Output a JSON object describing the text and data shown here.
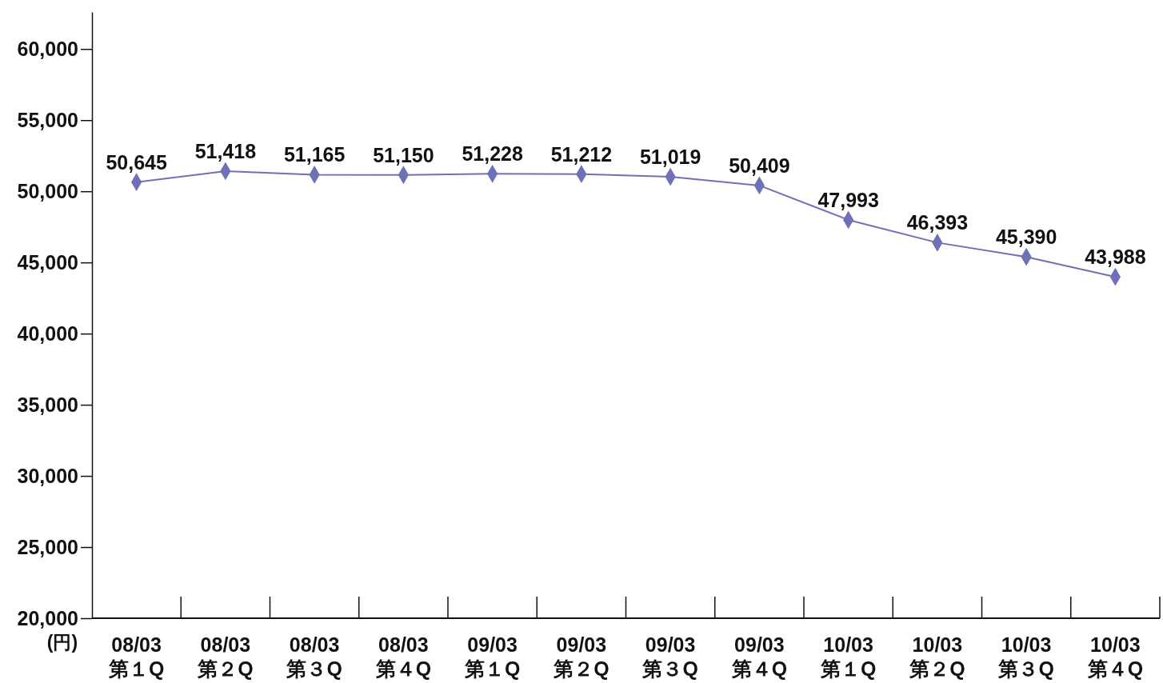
{
  "chart_data": {
    "type": "line",
    "ylabel": "(円)",
    "categories": [
      "08/03\n第１Q",
      "08/03\n第２Q",
      "08/03\n第３Q",
      "08/03\n第４Q",
      "09/03\n第１Q",
      "09/03\n第２Q",
      "09/03\n第３Q",
      "09/03\n第４Q",
      "10/03\n第１Q",
      "10/03\n第２Q",
      "10/03\n第３Q",
      "10/03\n第４Q"
    ],
    "series": [
      {
        "color": "#6e70b8",
        "values": [
          50645,
          51418,
          51165,
          51150,
          51228,
          51212,
          51019,
          50409,
          47993,
          46393,
          45390,
          43988
        ],
        "value_labels": [
          "50,645",
          "51,418",
          "51,165",
          "51,150",
          "51,228",
          "51,212",
          "51,019",
          "50,409",
          "47,993",
          "46,393",
          "45,390",
          "43,988"
        ]
      }
    ],
    "ylim": [
      20000,
      62600
    ],
    "yticks": [
      {
        "value": 20000,
        "label": "20,000"
      },
      {
        "value": 25000,
        "label": "25,000"
      },
      {
        "value": 30000,
        "label": "30,000"
      },
      {
        "value": 35000,
        "label": "35,000"
      },
      {
        "value": 40000,
        "label": "40,000"
      },
      {
        "value": 45000,
        "label": "45,000"
      },
      {
        "value": 50000,
        "label": "50,000"
      },
      {
        "value": 55000,
        "label": "55,000"
      },
      {
        "value": 60000,
        "label": "60,000"
      }
    ],
    "marker": "diamond",
    "line_style": "solid",
    "grid": false
  }
}
